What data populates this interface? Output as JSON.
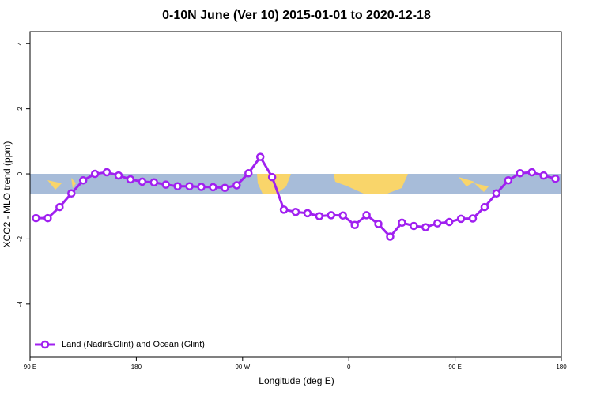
{
  "chart_data": {
    "type": "line",
    "title": "0-10N June (Ver 10)   2015-01-01 to 2020-12-18",
    "xlabel": "Longitude (deg E)",
    "ylabel": "XCO2 - MLO trend (ppm)",
    "x": [
      95,
      105,
      115,
      125,
      135,
      145,
      155,
      165,
      175,
      185,
      195,
      205,
      215,
      225,
      235,
      245,
      255,
      265,
      275,
      285,
      295,
      305,
      315,
      325,
      335,
      345,
      355,
      365,
      375,
      385,
      395,
      405,
      415,
      425,
      435,
      445,
      455,
      465,
      475,
      485,
      495,
      505,
      515,
      525,
      535
    ],
    "series": [
      {
        "name": "Land (Nadir&Glint) and Ocean (Glint)",
        "color": "#a020f0",
        "values": [
          -1.36,
          -1.36,
          -1.02,
          -0.6,
          -0.2,
          0.0,
          0.05,
          -0.05,
          -0.17,
          -0.24,
          -0.26,
          -0.33,
          -0.38,
          -0.38,
          -0.4,
          -0.41,
          -0.43,
          -0.35,
          0.02,
          0.52,
          -0.1,
          -1.1,
          -1.17,
          -1.21,
          -1.3,
          -1.27,
          -1.28,
          -1.57,
          -1.27,
          -1.54,
          -1.93,
          -1.5,
          -1.6,
          -1.64,
          -1.52,
          -1.48,
          -1.38,
          -1.37,
          -1.02,
          -0.6,
          -0.2,
          0.02,
          0.05,
          -0.05,
          -0.15
        ]
      }
    ],
    "xlim": [
      90,
      540
    ],
    "xticks": [
      {
        "value": 90,
        "label": "90 E"
      },
      180,
      {
        "value": 270,
        "label": "90 W"
      },
      {
        "value": 360,
        "label": "0"
      },
      {
        "value": 450,
        "label": "90 E"
      },
      {
        "value": 540,
        "label": "180"
      }
    ],
    "ylim": [
      -5.63,
      4.37
    ],
    "yticks": [
      -4,
      -2,
      0,
      2,
      4
    ],
    "legend": "bottom left"
  }
}
